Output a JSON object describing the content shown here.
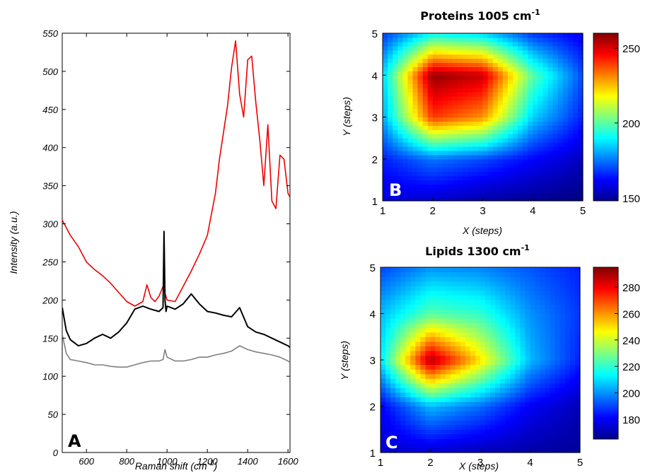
{
  "chart_data": [
    {
      "type": "line",
      "panel_label": "A",
      "xlabel": "Raman shift (cm",
      "xlabel_sup": "-1",
      "xlabel_end": ")",
      "ylabel": "Intensity (a.u.)",
      "xlim": [
        480,
        1610
      ],
      "ylim": [
        0,
        550
      ],
      "xticks": [
        600,
        800,
        1000,
        1200,
        1400,
        1600
      ],
      "yticks": [
        0,
        50,
        100,
        150,
        200,
        250,
        300,
        350,
        400,
        450,
        500,
        550
      ],
      "grid": false,
      "series": [
        {
          "color": "#ee0000",
          "x": [
            480,
            520,
            560,
            600,
            640,
            680,
            720,
            760,
            800,
            840,
            880,
            900,
            920,
            940,
            960,
            980,
            1000,
            1040,
            1080,
            1120,
            1160,
            1200,
            1240,
            1260,
            1280,
            1300,
            1320,
            1340,
            1360,
            1380,
            1400,
            1420,
            1440,
            1460,
            1480,
            1500,
            1520,
            1540,
            1560,
            1580,
            1600,
            1610
          ],
          "y": [
            305,
            285,
            270,
            250,
            240,
            232,
            222,
            210,
            198,
            192,
            198,
            220,
            203,
            198,
            205,
            218,
            200,
            198,
            218,
            238,
            260,
            285,
            340,
            385,
            420,
            455,
            505,
            540,
            470,
            440,
            515,
            520,
            460,
            410,
            350,
            430,
            330,
            320,
            390,
            385,
            340,
            335
          ]
        },
        {
          "color": "#000000",
          "x": [
            480,
            500,
            520,
            560,
            600,
            640,
            680,
            720,
            760,
            800,
            840,
            880,
            920,
            960,
            980,
            985,
            990,
            995,
            1000,
            1040,
            1080,
            1120,
            1160,
            1200,
            1240,
            1280,
            1320,
            1360,
            1400,
            1440,
            1480,
            1520,
            1560,
            1600,
            1610
          ],
          "y": [
            190,
            160,
            148,
            140,
            143,
            150,
            155,
            150,
            158,
            170,
            188,
            192,
            188,
            185,
            190,
            290,
            200,
            185,
            192,
            188,
            195,
            208,
            195,
            185,
            183,
            180,
            178,
            190,
            165,
            158,
            155,
            150,
            145,
            140,
            138
          ]
        },
        {
          "color": "#808080",
          "x": [
            480,
            500,
            520,
            560,
            600,
            640,
            680,
            720,
            760,
            800,
            840,
            880,
            920,
            960,
            980,
            990,
            1000,
            1040,
            1080,
            1120,
            1160,
            1200,
            1240,
            1280,
            1320,
            1360,
            1400,
            1440,
            1480,
            1520,
            1560,
            1600,
            1610
          ],
          "y": [
            155,
            130,
            122,
            120,
            118,
            115,
            115,
            113,
            112,
            112,
            115,
            118,
            120,
            120,
            122,
            135,
            125,
            120,
            120,
            122,
            125,
            125,
            128,
            130,
            133,
            140,
            135,
            132,
            130,
            128,
            125,
            120,
            118
          ]
        }
      ]
    },
    {
      "type": "heatmap",
      "panel_label": "B",
      "title": "Proteins 1005 cm",
      "title_sup": "-1",
      "xlabel": "X (steps)",
      "ylabel": "Y (steps)",
      "x": [
        1,
        2,
        3,
        4,
        5
      ],
      "y": [
        1,
        2,
        3,
        4,
        5
      ],
      "z": [
        [
          158,
          156,
          152,
          150,
          148
        ],
        [
          165,
          175,
          170,
          162,
          155
        ],
        [
          180,
          240,
          230,
          185,
          165
        ],
        [
          185,
          258,
          252,
          200,
          170
        ],
        [
          168,
          190,
          185,
          168,
          160
        ]
      ],
      "colorbar_ticks": [
        150,
        200,
        250
      ],
      "clim": [
        148,
        260
      ]
    },
    {
      "type": "heatmap",
      "panel_label": "C",
      "title": "Lipids 1300 cm",
      "title_sup": "-1",
      "xlabel": "X (steps)",
      "ylabel": "Y (steps)",
      "x": [
        1,
        2,
        3,
        4,
        5
      ],
      "y": [
        1,
        2,
        3,
        4,
        5
      ],
      "z": [
        [
          175,
          175,
          172,
          170,
          168
        ],
        [
          180,
          205,
          195,
          180,
          172
        ],
        [
          210,
          290,
          250,
          205,
          185
        ],
        [
          205,
          225,
          220,
          200,
          188
        ],
        [
          190,
          200,
          198,
          192,
          185
        ]
      ],
      "colorbar_ticks": [
        180,
        200,
        220,
        240,
        260,
        280
      ],
      "clim": [
        165,
        295
      ]
    }
  ]
}
